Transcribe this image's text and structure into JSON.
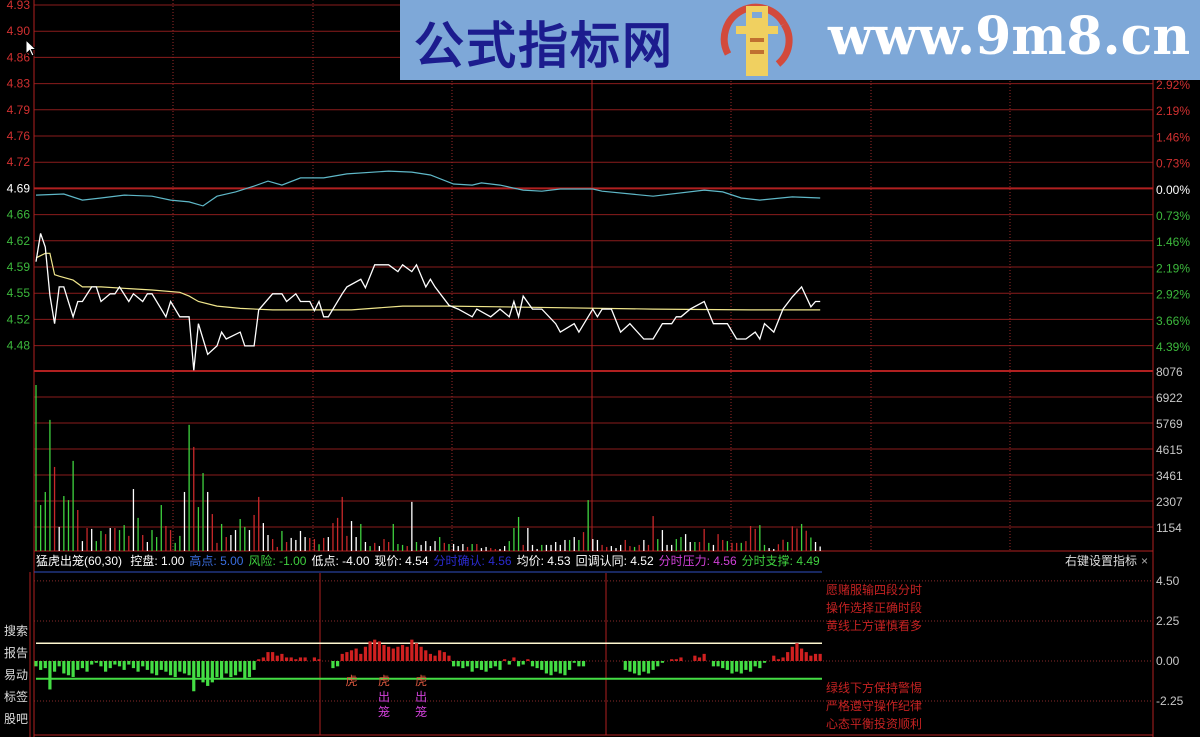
{
  "price_axis": {
    "left_ticks": [
      "4.93",
      "4.90",
      "4.86",
      "4.83",
      "4.79",
      "4.76",
      "4.72",
      "4.69",
      "4.66",
      "4.62",
      "4.59",
      "4.55",
      "4.52",
      "4.48"
    ],
    "pct_ticks": [
      "2.92%",
      "2.19%",
      "1.46%",
      "0.73%",
      "0.00%",
      "0.73%",
      "1.46%",
      "2.19%",
      "2.92%",
      "3.66%",
      "4.39%"
    ],
    "volume_ticks": [
      "8076",
      "6922",
      "5769",
      "4615",
      "3461",
      "2307",
      "1154"
    ]
  },
  "indicator": {
    "name": "猛虎出笼(60,30)",
    "params": [
      {
        "label": "控盘: 1.00",
        "color": "#ffffff"
      },
      {
        "label": "高点: 5.00",
        "color": "#3a6ee0"
      },
      {
        "label": "风险: -1.00",
        "color": "#3fcf3f"
      },
      {
        "label": "低点: -4.00",
        "color": "#ffffff"
      },
      {
        "label": "现价: 4.54",
        "color": "#ffffff"
      },
      {
        "label": "分时确认: 4.56",
        "color": "#2b2bd0"
      },
      {
        "label": "均价: 4.53",
        "color": "#ffffff"
      },
      {
        "label": "回调认同: 4.52",
        "color": "#ffffff"
      },
      {
        "label": "分时压力: 4.56",
        "color": "#d040d8"
      },
      {
        "label": "分时支撑: 4.49",
        "color": "#3fcf3f"
      }
    ],
    "settings_label": "右键设置指标",
    "close_label": "×",
    "axis_ticks": [
      "4.50",
      "2.25",
      "0.00",
      "-2.25"
    ],
    "notes_top": [
      "愿赌服输四段分时",
      "操作选择正确时段",
      "黄线上方谨慎看多"
    ],
    "notes_bottom": [
      "绿线下方保持警惕",
      "严格遵守操作纪律",
      "心态平衡投资顺利"
    ],
    "markers": [
      {
        "minute": 68,
        "text1": "虎",
        "text2": "",
        "text3": ""
      },
      {
        "minute": 75,
        "text1": "虎",
        "text2": "出",
        "text3": "笼"
      },
      {
        "minute": 83,
        "text1": "虎",
        "text2": "出",
        "text3": "笼"
      }
    ]
  },
  "side_menu": [
    "搜索",
    "报告",
    "易动",
    "标签",
    "股吧"
  ],
  "watermark": {
    "text": "公式指标网",
    "url": "www.9m8.cn"
  },
  "colors": {
    "up": "#c8282a",
    "down": "#3fd23f",
    "flat": "#ffffff",
    "grid": "#8a1c1c",
    "price_line": "#ffffff",
    "avg_line": "#f0e68c",
    "index_line": "#5fb8c8"
  },
  "chart_data": [
    {
      "type": "line",
      "prev_close": 4.69,
      "price": [
        [
          0,
          4.595
        ],
        [
          1,
          4.632
        ],
        [
          2,
          4.614
        ],
        [
          3,
          4.551
        ],
        [
          4,
          4.514
        ],
        [
          5,
          4.562
        ],
        [
          6,
          4.562
        ],
        [
          8,
          4.523
        ],
        [
          9,
          4.543
        ],
        [
          10,
          4.543
        ],
        [
          12,
          4.562
        ],
        [
          13,
          4.562
        ],
        [
          14,
          4.543
        ],
        [
          16,
          4.553
        ],
        [
          17,
          4.553
        ],
        [
          18,
          4.562
        ],
        [
          20,
          4.543
        ],
        [
          21,
          4.553
        ],
        [
          23,
          4.543
        ],
        [
          24,
          4.553
        ],
        [
          25,
          4.553
        ],
        [
          28,
          4.523
        ],
        [
          29,
          4.543
        ],
        [
          31,
          4.523
        ],
        [
          33,
          4.523
        ],
        [
          34,
          4.453
        ],
        [
          35,
          4.514
        ],
        [
          37,
          4.474
        ],
        [
          39,
          4.485
        ],
        [
          40,
          4.503
        ],
        [
          41,
          4.494
        ],
        [
          44,
          4.503
        ],
        [
          45,
          4.485
        ],
        [
          47,
          4.485
        ],
        [
          48,
          4.532
        ],
        [
          51,
          4.553
        ],
        [
          53,
          4.553
        ],
        [
          54,
          4.543
        ],
        [
          56,
          4.553
        ],
        [
          57,
          4.543
        ],
        [
          59,
          4.543
        ],
        [
          60,
          4.531
        ],
        [
          61,
          4.543
        ],
        [
          62,
          4.523
        ],
        [
          63,
          4.523
        ],
        [
          66,
          4.553
        ],
        [
          67,
          4.562
        ],
        [
          70,
          4.572
        ],
        [
          71,
          4.561
        ],
        [
          73,
          4.591
        ],
        [
          76,
          4.591
        ],
        [
          78,
          4.582
        ],
        [
          79,
          4.591
        ],
        [
          81,
          4.582
        ],
        [
          82,
          4.591
        ],
        [
          84,
          4.562
        ],
        [
          85,
          4.572
        ],
        [
          86,
          4.562
        ],
        [
          89,
          4.538
        ],
        [
          91,
          4.533
        ],
        [
          94,
          4.523
        ],
        [
          95,
          4.533
        ],
        [
          98,
          4.523
        ],
        [
          100,
          4.533
        ],
        [
          102,
          4.523
        ],
        [
          103,
          4.543
        ],
        [
          104,
          4.523
        ],
        [
          105,
          4.55
        ],
        [
          107,
          4.533
        ],
        [
          109,
          4.533
        ],
        [
          112,
          4.514
        ],
        [
          113,
          4.503
        ],
        [
          116,
          4.514
        ],
        [
          117,
          4.503
        ],
        [
          120,
          4.533
        ],
        [
          121,
          4.523
        ],
        [
          122,
          4.533
        ],
        [
          124,
          4.533
        ],
        [
          126,
          4.503
        ],
        [
          128,
          4.514
        ],
        [
          131,
          4.494
        ],
        [
          133,
          4.494
        ],
        [
          135,
          4.514
        ],
        [
          137,
          4.514
        ],
        [
          138,
          4.523
        ],
        [
          139,
          4.523
        ],
        [
          141,
          4.533
        ],
        [
          144,
          4.543
        ],
        [
          146,
          4.514
        ],
        [
          149,
          4.514
        ],
        [
          151,
          4.494
        ],
        [
          153,
          4.494
        ],
        [
          155,
          4.503
        ],
        [
          156,
          4.494
        ],
        [
          157,
          4.514
        ],
        [
          159,
          4.503
        ],
        [
          161,
          4.533
        ],
        [
          163,
          4.549
        ],
        [
          165,
          4.562
        ],
        [
          167,
          4.536
        ],
        [
          168,
          4.543
        ],
        [
          169,
          4.543
        ]
      ],
      "average": [
        [
          0,
          4.6
        ],
        [
          2,
          4.606
        ],
        [
          3,
          4.606
        ],
        [
          4,
          4.578
        ],
        [
          5,
          4.576
        ],
        [
          8,
          4.571
        ],
        [
          10,
          4.562
        ],
        [
          14,
          4.562
        ],
        [
          25,
          4.558
        ],
        [
          31,
          4.555
        ],
        [
          33,
          4.55
        ],
        [
          35,
          4.543
        ],
        [
          39,
          4.537
        ],
        [
          44,
          4.534
        ],
        [
          51,
          4.532
        ],
        [
          68,
          4.532
        ],
        [
          79,
          4.537
        ],
        [
          89,
          4.537
        ],
        [
          100,
          4.536
        ],
        [
          133,
          4.533
        ],
        [
          154,
          4.532
        ],
        [
          169,
          4.532
        ]
      ],
      "index_pct": [
        [
          0,
          -0.17
        ],
        [
          6,
          -0.14
        ],
        [
          10,
          -0.31
        ],
        [
          14,
          -0.25
        ],
        [
          19,
          -0.17
        ],
        [
          25,
          -0.2
        ],
        [
          29,
          -0.31
        ],
        [
          33,
          -0.36
        ],
        [
          36,
          -0.47
        ],
        [
          39,
          -0.2
        ],
        [
          43,
          -0.08
        ],
        [
          47,
          0.08
        ],
        [
          50,
          0.22
        ],
        [
          53,
          0.11
        ],
        [
          57,
          0.31
        ],
        [
          62,
          0.31
        ],
        [
          67,
          0.42
        ],
        [
          76,
          0.5
        ],
        [
          81,
          0.47
        ],
        [
          85,
          0.39
        ],
        [
          90,
          0.14
        ],
        [
          94,
          0.11
        ],
        [
          96,
          0.17
        ],
        [
          100,
          0.11
        ],
        [
          105,
          -0.03
        ],
        [
          109,
          -0.06
        ],
        [
          113,
          0.0
        ],
        [
          120,
          0.0
        ],
        [
          122,
          -0.06
        ],
        [
          133,
          -0.2
        ],
        [
          144,
          -0.03
        ],
        [
          148,
          -0.08
        ],
        [
          152,
          -0.25
        ],
        [
          156,
          -0.31
        ],
        [
          163,
          -0.22
        ],
        [
          169,
          -0.25
        ]
      ],
      "ylim": [
        4.48,
        4.93
      ],
      "xlim_minutes": [
        0,
        240
      ]
    },
    {
      "type": "bar",
      "volume": [
        7370,
        2040,
        2620,
        5820,
        3730,
        1070,
        2440,
        2260,
        4000,
        1820,
        440,
        1020,
        980,
        440,
        890,
        750,
        1020,
        1020,
        930,
        1150,
        670,
        2750,
        1470,
        710,
        400,
        930,
        620,
        2040,
        1110,
        930,
        360,
        670,
        2620,
        5600,
        4620,
        1950,
        3460,
        2620,
        1640,
        360,
        1200,
        620,
        710,
        930,
        1420,
        1070,
        930,
        1600,
        2400,
        1240,
        710,
        530,
        180,
        890,
        400,
        580,
        490,
        890,
        620,
        580,
        530,
        300,
        580,
        620,
        1240,
        1470,
        2400,
        670,
        1330,
        620,
        1200,
        400,
        220,
        360,
        220,
        530,
        400,
        1200,
        310,
        270,
        220,
        2180,
        400,
        270,
        440,
        220,
        440,
        620,
        360,
        310,
        310,
        220,
        310,
        180,
        310,
        310,
        130,
        180,
        130,
        90,
        90,
        220,
        440,
        1020,
        1510,
        270,
        1020,
        270,
        90,
        270,
        270,
        270,
        400,
        270,
        490,
        490,
        620,
        490,
        840,
        2260,
        530,
        490,
        270,
        180,
        220,
        130,
        270,
        490,
        220,
        180,
        270,
        490,
        270,
        1550,
        530,
        930,
        270,
        270,
        530,
        620,
        750,
        400,
        400,
        400,
        980,
        360,
        270,
        750,
        490,
        440,
        360,
        360,
        360,
        440,
        1110,
        980,
        1150,
        270,
        130,
        90,
        300,
        500,
        400,
        1100,
        1000,
        1200,
        900,
        600,
        400,
        200
      ],
      "volume_colors": "ggggrwgggrwrwggrwrggrwgrwgggrrggwgrggwrrgrwwggwrrwwrrgrwwwwrrgrwrrrrwwgwgrwrrgggrwgwwwwgrgwwwrgrwwrrwwgggrwwwgwwwwwgwgrgwwrrwwwrrgrwrrgwwwggwwgrrgwrrgrrgrrrggwwrrgrrgrgww",
      "ylim": [
        0,
        8076
      ]
    },
    {
      "type": "bar",
      "values": [
        -0.3,
        -0.5,
        -0.4,
        -1.6,
        -0.6,
        -0.3,
        -0.7,
        -0.8,
        -0.9,
        -0.5,
        -0.4,
        -0.6,
        -0.2,
        -0.1,
        -0.3,
        -0.6,
        -0.4,
        -0.2,
        -0.3,
        -0.5,
        -0.2,
        -0.4,
        -0.6,
        -0.3,
        -0.5,
        -0.7,
        -0.8,
        -0.5,
        -0.6,
        -0.8,
        -0.9,
        -0.6,
        -0.7,
        -0.8,
        -1.7,
        -0.9,
        -1.2,
        -1.4,
        -1.2,
        -0.9,
        -1.0,
        -0.7,
        -0.9,
        -0.8,
        -0.6,
        -1.0,
        -0.9,
        -0.5,
        0.1,
        0.2,
        0.5,
        0.5,
        0.3,
        0.4,
        0.2,
        0.2,
        0.1,
        0.2,
        0.2,
        0,
        0.2,
        0.1,
        0,
        0,
        -0.4,
        -0.3,
        0.4,
        0.5,
        0.6,
        0.7,
        0.4,
        0.8,
        1.1,
        1.2,
        1.1,
        0.9,
        0.8,
        0.7,
        0.8,
        0.9,
        0.8,
        1.2,
        1.0,
        0.8,
        0.6,
        0.4,
        0.3,
        0.6,
        0.5,
        0.3,
        -0.3,
        -0.3,
        -0.4,
        -0.3,
        -0.6,
        -0.4,
        -0.5,
        -0.6,
        -0.4,
        -0.3,
        -0.5,
        0.1,
        -0.2,
        0.2,
        -0.3,
        -0.2,
        0.1,
        -0.3,
        -0.4,
        -0.5,
        -0.7,
        -0.8,
        -0.6,
        -0.7,
        -0.8,
        -0.5,
        -0.1,
        -0.3,
        -0.3,
        0,
        0,
        0,
        0,
        0,
        0,
        0,
        0,
        -0.5,
        -0.6,
        -0.7,
        -0.8,
        -0.6,
        -0.7,
        -0.5,
        -0.3,
        -0.1,
        0,
        0.1,
        0.1,
        0.2,
        0,
        0,
        0.3,
        0.2,
        0.4,
        0,
        -0.3,
        -0.3,
        -0.4,
        -0.5,
        -0.7,
        -0.6,
        -0.7,
        -0.5,
        -0.6,
        -0.3,
        -0.4,
        -0.1,
        0,
        0.3,
        0.1,
        0.2,
        0.5,
        0.8,
        1.0,
        0.7,
        0.5,
        0.3,
        0.4,
        0.4
      ],
      "upper_line": 1.0,
      "lower_line": -1.0,
      "ylim": [
        -2.8,
        4.5
      ]
    }
  ]
}
